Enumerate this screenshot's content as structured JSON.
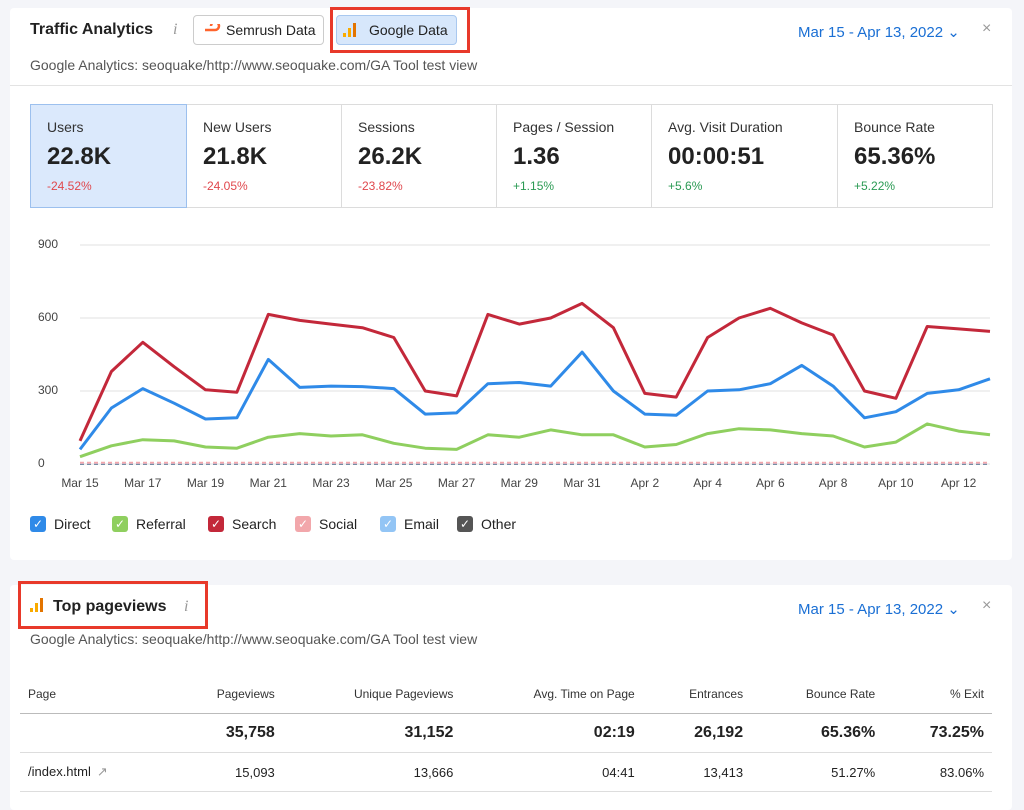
{
  "panel1": {
    "title": "Traffic Analytics",
    "info": "i",
    "tabs": [
      "Semrush Data",
      "Google Data"
    ],
    "date_range": "Mar 15 - Apr 13, 2022",
    "close": "×",
    "subtitle": "Google Analytics: seoquake/http://www.seoquake.com/GA Tool test view"
  },
  "metrics": [
    {
      "label": "Users",
      "value": "22.8K",
      "change": "-24.52%"
    },
    {
      "label": "New Users",
      "value": "21.8K",
      "change": "-24.05%"
    },
    {
      "label": "Sessions",
      "value": "26.2K",
      "change": "-23.82%"
    },
    {
      "label": "Pages / Session",
      "value": "1.36",
      "change": "+1.15%"
    },
    {
      "label": "Avg. Visit Duration",
      "value": "00:00:51",
      "change": "+5.6%"
    },
    {
      "label": "Bounce Rate",
      "value": "65.36%",
      "change": "+5.22%"
    }
  ],
  "chart_data": {
    "type": "line",
    "categories": [
      "Mar 15",
      null,
      "Mar 17",
      null,
      "Mar 19",
      null,
      "Mar 21",
      null,
      "Mar 23",
      null,
      "Mar 25",
      null,
      "Mar 27",
      null,
      "Mar 29",
      null,
      "Mar 31",
      null,
      "Apr 2",
      null,
      "Apr 4",
      null,
      "Apr 6",
      null,
      "Apr 8",
      null,
      "Apr 10",
      null,
      "Apr 12",
      null
    ],
    "ylim": [
      0,
      900
    ],
    "yticks": [
      0,
      300,
      600,
      900
    ],
    "grid": true,
    "series": [
      {
        "name": "Direct",
        "color": "#2f8ae8",
        "values": [
          60,
          230,
          310,
          250,
          185,
          190,
          430,
          315,
          320,
          318,
          310,
          205,
          210,
          330,
          335,
          320,
          460,
          300,
          205,
          200,
          300,
          305,
          330,
          405,
          320,
          190,
          215,
          290,
          305,
          350
        ]
      },
      {
        "name": "Referral",
        "color": "#8fcf5f",
        "values": [
          30,
          75,
          100,
          95,
          70,
          65,
          110,
          125,
          115,
          120,
          85,
          65,
          60,
          120,
          110,
          140,
          120,
          120,
          70,
          80,
          125,
          145,
          140,
          125,
          115,
          70,
          90,
          165,
          135,
          120
        ]
      },
      {
        "name": "Search",
        "color": "#c3283a",
        "values": [
          95,
          380,
          500,
          400,
          305,
          295,
          615,
          590,
          575,
          560,
          520,
          300,
          280,
          615,
          575,
          600,
          660,
          560,
          290,
          275,
          520,
          600,
          640,
          580,
          530,
          300,
          270,
          565,
          555,
          545
        ]
      },
      {
        "name": "Social",
        "color": "#f2a7ab",
        "values": [
          5,
          5,
          5,
          5,
          5,
          5,
          5,
          5,
          5,
          5,
          5,
          5,
          5,
          5,
          5,
          5,
          5,
          5,
          5,
          5,
          5,
          5,
          5,
          5,
          5,
          5,
          5,
          5,
          5,
          5
        ]
      },
      {
        "name": "Email",
        "color": "#93c5f5",
        "values": [
          2,
          2,
          2,
          2,
          2,
          2,
          2,
          2,
          2,
          2,
          2,
          2,
          2,
          2,
          2,
          2,
          2,
          2,
          2,
          2,
          2,
          2,
          2,
          2,
          2,
          2,
          2,
          2,
          2,
          2
        ]
      },
      {
        "name": "Other",
        "color": "#555555",
        "values": [
          0,
          0,
          0,
          0,
          0,
          0,
          0,
          0,
          0,
          0,
          0,
          0,
          0,
          0,
          0,
          0,
          0,
          0,
          0,
          0,
          0,
          0,
          0,
          0,
          0,
          0,
          0,
          0,
          0,
          0
        ]
      }
    ]
  },
  "panel2": {
    "title": "Top pageviews",
    "info": "i",
    "date_range": "Mar 15 - Apr 13, 2022",
    "close": "×",
    "subtitle": "Google Analytics: seoquake/http://www.seoquake.com/GA Tool test view"
  },
  "table": {
    "columns": [
      "Page",
      "Pageviews",
      "Unique Pageviews",
      "Avg. Time on Page",
      "Entrances",
      "Bounce Rate",
      "% Exit"
    ],
    "totals": [
      "35,758",
      "31,152",
      "02:19",
      "26,192",
      "65.36%",
      "73.25%"
    ],
    "rows": [
      [
        "/index.html",
        "15,093",
        "13,666",
        "04:41",
        "13,413",
        "51.27%",
        "83.06%"
      ]
    ]
  }
}
